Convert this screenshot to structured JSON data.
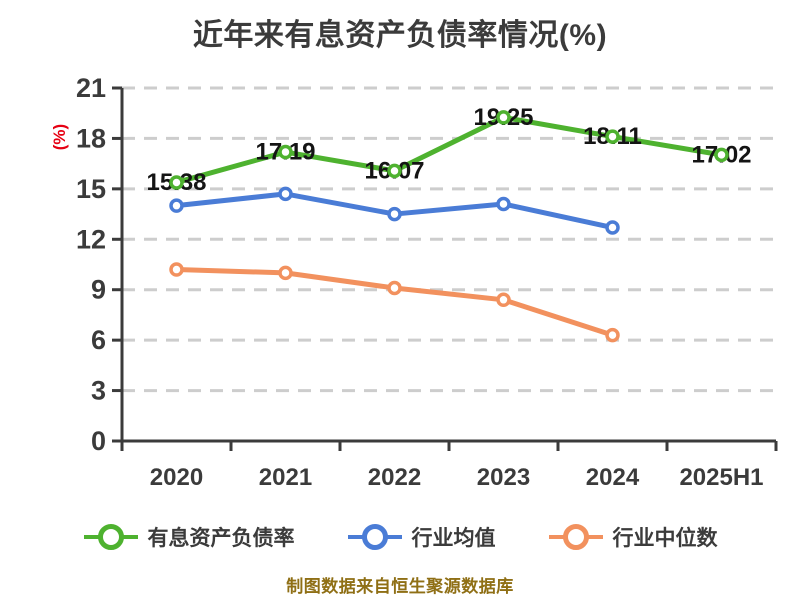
{
  "title": "近年来有息资产负债率情况(%)",
  "data_source_note": "制图数据来自恒生聚源数据库",
  "chart_data": {
    "type": "line",
    "title": "近年来有息资产负债率情况(%)",
    "categories": [
      "2020",
      "2021",
      "2022",
      "2023",
      "2024",
      "2025H1"
    ],
    "ylabel": "(%)",
    "ylim": [
      0,
      21
    ],
    "yticks": [
      0,
      3,
      6,
      9,
      12,
      15,
      18,
      21
    ],
    "grid": "horizontal-dashed",
    "legend_position": "bottom",
    "series": [
      {
        "name": "有息资产负债率",
        "color": "#4eb22f",
        "values": [
          15.38,
          17.19,
          16.07,
          19.25,
          18.11,
          17.02
        ],
        "data_labels": [
          "15.38",
          "17.19",
          "16.07",
          "19.25",
          "18.11",
          "17.02"
        ]
      },
      {
        "name": "行业均值",
        "color": "#4a7cd6",
        "values": [
          14.0,
          14.7,
          13.5,
          14.1,
          12.7
        ],
        "data_labels": null
      },
      {
        "name": "行业中位数",
        "color": "#f2915e",
        "values": [
          10.2,
          10.0,
          9.1,
          8.4,
          6.3
        ],
        "data_labels": null
      }
    ],
    "colors": {
      "title": "#3b3b3b",
      "axis": "#3b3b3b",
      "tick_label": "#3b3b3b",
      "grid": "#cdcdcd",
      "data_label": "#141414",
      "marker_fill": "#ffffff",
      "ylabel": "#e60013",
      "source_note": "#8f6f15"
    }
  }
}
